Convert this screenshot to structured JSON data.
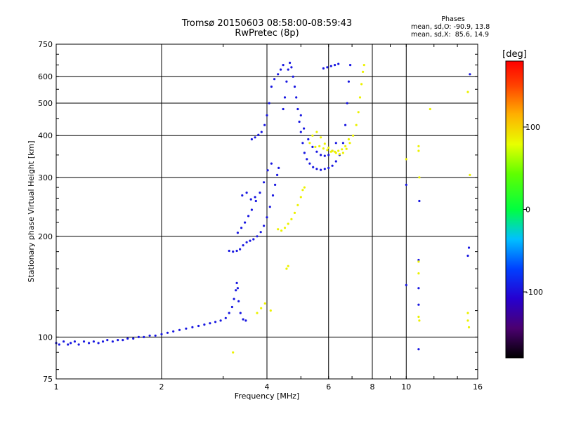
{
  "header": {
    "title": "Tromsø 20150603 08:58:00-08:59:43",
    "subtitle": "RwPretec (8p)"
  },
  "phase_box": {
    "heading": "Phases",
    "line1": "mean, sd,O: -90.9, 13.8",
    "line2": "mean, sd,X:  85.6, 14.9"
  },
  "colorbar": {
    "unit": "[deg]",
    "min": -180,
    "max": 180,
    "ticks": [
      {
        "value": 100,
        "label": "100"
      },
      {
        "value": 0,
        "label": "0"
      },
      {
        "value": -100,
        "label": "-100"
      }
    ]
  },
  "chart_data": {
    "type": "scatter",
    "title": "Tromsø 20150603 08:58:00-08:59:43",
    "subtitle": "RwPretec (8p)",
    "xlabel": "Frequency [MHz]",
    "ylabel": "Stationary phase Virtual Height [km]",
    "xscale": "log",
    "yscale": "log",
    "xlim": [
      1,
      16
    ],
    "ylim": [
      75,
      750
    ],
    "grid": true,
    "x_ticks": [
      {
        "value": 1,
        "label": "1"
      },
      {
        "value": 2,
        "label": "2"
      },
      {
        "value": 4,
        "label": "4"
      },
      {
        "value": 6,
        "label": "6"
      },
      {
        "value": 8,
        "label": "8"
      },
      {
        "value": 10,
        "label": "10"
      },
      {
        "value": 16,
        "label": "16"
      }
    ],
    "y_ticks": [
      {
        "value": 75,
        "label": "75"
      },
      {
        "value": 100,
        "label": "100"
      },
      {
        "value": 200,
        "label": "200"
      },
      {
        "value": 300,
        "label": "300"
      },
      {
        "value": 400,
        "label": "400"
      },
      {
        "value": 500,
        "label": "500"
      },
      {
        "value": 600,
        "label": "600"
      },
      {
        "value": 750,
        "label": "750"
      }
    ],
    "color_by": "phase [deg]",
    "series": [
      {
        "mode": "O",
        "color_phase": -95,
        "points": [
          [
            1.0,
            96
          ],
          [
            1.02,
            95
          ],
          [
            1.05,
            97
          ],
          [
            1.08,
            95
          ],
          [
            1.1,
            96
          ],
          [
            1.13,
            97
          ],
          [
            1.16,
            95
          ],
          [
            1.2,
            97
          ],
          [
            1.24,
            96
          ],
          [
            1.28,
            97
          ],
          [
            1.32,
            96
          ],
          [
            1.36,
            97
          ],
          [
            1.4,
            98
          ],
          [
            1.45,
            97
          ],
          [
            1.5,
            98
          ],
          [
            1.55,
            98
          ],
          [
            1.6,
            99
          ],
          [
            1.66,
            99
          ],
          [
            1.72,
            100
          ],
          [
            1.78,
            100
          ],
          [
            1.85,
            101
          ],
          [
            1.92,
            101
          ],
          [
            2.0,
            102
          ],
          [
            2.08,
            103
          ],
          [
            2.16,
            104
          ],
          [
            2.25,
            105
          ],
          [
            2.35,
            106
          ],
          [
            2.45,
            107
          ],
          [
            2.55,
            108
          ],
          [
            2.65,
            109
          ],
          [
            2.75,
            110
          ],
          [
            2.85,
            111
          ],
          [
            2.95,
            112
          ],
          [
            3.05,
            114
          ],
          [
            3.12,
            118
          ],
          [
            3.18,
            123
          ],
          [
            3.22,
            130
          ],
          [
            3.26,
            138
          ],
          [
            3.28,
            145
          ],
          [
            3.3,
            140
          ],
          [
            3.32,
            128
          ],
          [
            3.36,
            118
          ],
          [
            3.42,
            113
          ],
          [
            3.48,
            112
          ],
          [
            3.12,
            181
          ],
          [
            3.2,
            180
          ],
          [
            3.28,
            181
          ],
          [
            3.35,
            183
          ],
          [
            3.42,
            188
          ],
          [
            3.5,
            192
          ],
          [
            3.58,
            194
          ],
          [
            3.66,
            196
          ],
          [
            3.75,
            200
          ],
          [
            3.84,
            206
          ],
          [
            3.92,
            215
          ],
          [
            4.0,
            228
          ],
          [
            4.08,
            245
          ],
          [
            4.16,
            265
          ],
          [
            4.22,
            285
          ],
          [
            4.28,
            305
          ],
          [
            4.32,
            320
          ],
          [
            3.3,
            205
          ],
          [
            3.38,
            212
          ],
          [
            3.46,
            220
          ],
          [
            3.54,
            230
          ],
          [
            3.62,
            240
          ],
          [
            3.72,
            255
          ],
          [
            3.82,
            270
          ],
          [
            3.92,
            290
          ],
          [
            4.02,
            315
          ],
          [
            4.12,
            330
          ],
          [
            3.4,
            265
          ],
          [
            3.5,
            270
          ],
          [
            3.6,
            258
          ],
          [
            3.7,
            262
          ],
          [
            3.62,
            390
          ],
          [
            3.7,
            395
          ],
          [
            3.78,
            402
          ],
          [
            3.86,
            410
          ],
          [
            3.94,
            430
          ],
          [
            4.0,
            460
          ],
          [
            4.06,
            500
          ],
          [
            4.12,
            560
          ],
          [
            4.2,
            590
          ],
          [
            4.3,
            610
          ],
          [
            4.38,
            630
          ],
          [
            4.45,
            650
          ],
          [
            4.45,
            480
          ],
          [
            4.5,
            520
          ],
          [
            4.55,
            580
          ],
          [
            4.6,
            630
          ],
          [
            4.65,
            660
          ],
          [
            4.7,
            640
          ],
          [
            4.75,
            600
          ],
          [
            4.8,
            560
          ],
          [
            4.85,
            520
          ],
          [
            4.9,
            480
          ],
          [
            4.95,
            440
          ],
          [
            5.0,
            410
          ],
          [
            5.06,
            380
          ],
          [
            5.12,
            355
          ],
          [
            5.2,
            340
          ],
          [
            5.3,
            330
          ],
          [
            5.42,
            322
          ],
          [
            5.55,
            318
          ],
          [
            5.7,
            316
          ],
          [
            5.85,
            318
          ],
          [
            6.0,
            320
          ],
          [
            6.15,
            325
          ],
          [
            6.3,
            335
          ],
          [
            6.45,
            350
          ],
          [
            6.6,
            380
          ],
          [
            6.7,
            430
          ],
          [
            6.78,
            500
          ],
          [
            6.85,
            580
          ],
          [
            6.92,
            650
          ],
          [
            5.0,
            460
          ],
          [
            5.1,
            420
          ],
          [
            5.25,
            390
          ],
          [
            5.4,
            370
          ],
          [
            5.55,
            358
          ],
          [
            5.7,
            350
          ],
          [
            5.85,
            348
          ],
          [
            6.0,
            350
          ],
          [
            6.15,
            360
          ],
          [
            6.3,
            380
          ],
          [
            5.8,
            635
          ],
          [
            5.95,
            640
          ],
          [
            6.1,
            645
          ],
          [
            6.25,
            650
          ],
          [
            6.4,
            655
          ],
          [
            10.85,
            170
          ],
          [
            10.85,
            140
          ],
          [
            10.85,
            92
          ],
          [
            10.9,
            255
          ],
          [
            10.85,
            125
          ],
          [
            10.0,
            285
          ],
          [
            10.0,
            143
          ],
          [
            15.0,
            175
          ],
          [
            15.1,
            185
          ],
          [
            15.2,
            610
          ]
        ]
      },
      {
        "mode": "X",
        "color_phase": 85,
        "points": [
          [
            4.3,
            210
          ],
          [
            4.4,
            208
          ],
          [
            4.5,
            212
          ],
          [
            4.6,
            218
          ],
          [
            4.7,
            225
          ],
          [
            4.8,
            235
          ],
          [
            4.9,
            248
          ],
          [
            5.0,
            262
          ],
          [
            5.06,
            275
          ],
          [
            5.12,
            280
          ],
          [
            5.3,
            380
          ],
          [
            5.4,
            400
          ],
          [
            5.55,
            410
          ],
          [
            5.7,
            395
          ],
          [
            5.85,
            378
          ],
          [
            6.0,
            368
          ],
          [
            6.15,
            360
          ],
          [
            6.3,
            355
          ],
          [
            6.45,
            352
          ],
          [
            6.6,
            355
          ],
          [
            6.75,
            365
          ],
          [
            6.9,
            380
          ],
          [
            7.05,
            400
          ],
          [
            7.2,
            430
          ],
          [
            7.3,
            470
          ],
          [
            7.38,
            520
          ],
          [
            7.45,
            570
          ],
          [
            7.52,
            620
          ],
          [
            7.58,
            650
          ],
          [
            5.5,
            370
          ],
          [
            5.65,
            372
          ],
          [
            5.8,
            366
          ],
          [
            5.95,
            362
          ],
          [
            6.1,
            358
          ],
          [
            6.25,
            358
          ],
          [
            6.4,
            360
          ],
          [
            6.55,
            364
          ],
          [
            6.7,
            372
          ],
          [
            6.85,
            390
          ],
          [
            3.2,
            90
          ],
          [
            3.75,
            118
          ],
          [
            3.85,
            122
          ],
          [
            3.95,
            126
          ],
          [
            4.1,
            120
          ],
          [
            4.55,
            160
          ],
          [
            4.6,
            163
          ],
          [
            10.85,
            372
          ],
          [
            10.85,
            360
          ],
          [
            10.9,
            300
          ],
          [
            10.85,
            168
          ],
          [
            10.85,
            155
          ],
          [
            10.85,
            115
          ],
          [
            10.9,
            112
          ],
          [
            11.7,
            480
          ],
          [
            10.0,
            340
          ],
          [
            15.0,
            540
          ],
          [
            15.1,
            107
          ],
          [
            15.0,
            112
          ],
          [
            15.0,
            118
          ],
          [
            15.2,
            305
          ]
        ]
      }
    ]
  }
}
